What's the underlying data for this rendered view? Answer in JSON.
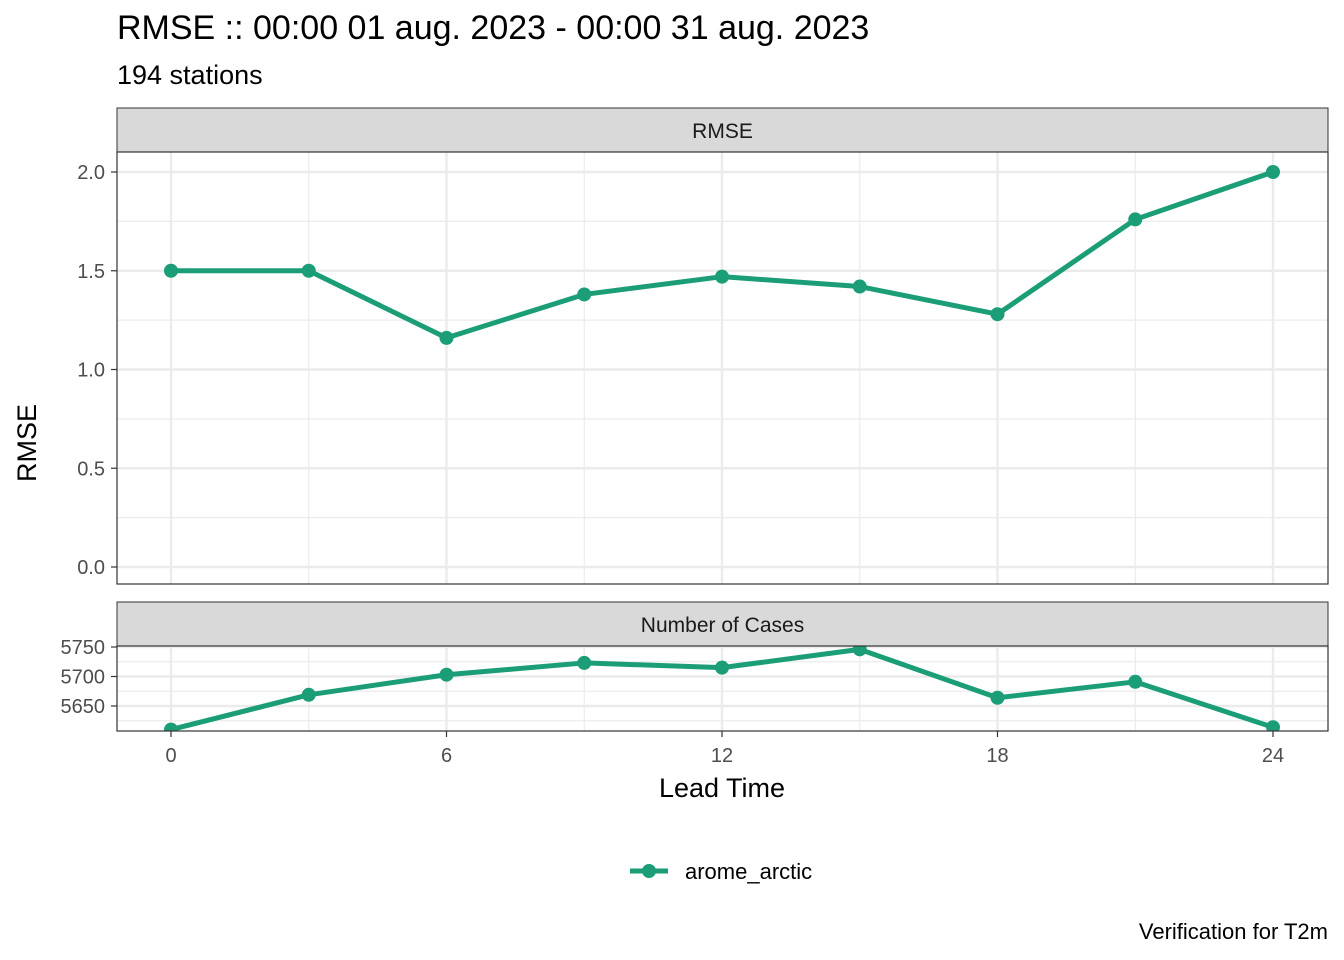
{
  "title": "RMSE :: 00:00 01 aug. 2023 - 00:00 31 aug. 2023",
  "subtitle": "194 stations",
  "caption": "Verification for T2m",
  "colors": {
    "series": "#1b9e77",
    "strip": "#d9d9d9",
    "grid": "#ebebeb"
  },
  "chart_data": [
    {
      "type": "line",
      "title": "RMSE",
      "xlabel": "Lead Time",
      "ylabel": "RMSE",
      "xlim": [
        0,
        24
      ],
      "ylim": [
        0,
        2.0
      ],
      "x_ticks": [
        0,
        6,
        12,
        18,
        24
      ],
      "y_ticks": [
        0.0,
        0.5,
        1.0,
        1.5,
        2.0
      ],
      "y_tick_labels": [
        "0.0",
        "0.5",
        "1.0",
        "1.5",
        "2.0"
      ],
      "grid": true,
      "x": [
        0,
        3,
        6,
        9,
        12,
        15,
        18,
        21,
        24
      ],
      "series": [
        {
          "name": "arome_arctic",
          "values": [
            1.5,
            1.5,
            1.16,
            1.38,
            1.47,
            1.42,
            1.28,
            1.76,
            2.0
          ]
        }
      ]
    },
    {
      "type": "line",
      "title": "Number of Cases",
      "xlabel": "Lead Time",
      "ylabel": "",
      "xlim": [
        0,
        24
      ],
      "ylim": [
        5650,
        5750
      ],
      "x_ticks": [
        0,
        6,
        12,
        18,
        24
      ],
      "y_ticks": [
        5650,
        5700,
        5750
      ],
      "y_tick_labels": [
        "5650",
        "5700",
        "5750"
      ],
      "grid": true,
      "x": [
        0,
        3,
        6,
        9,
        12,
        15,
        18,
        21,
        24
      ],
      "series": [
        {
          "name": "arome_arctic",
          "values": [
            5610,
            5669,
            5703,
            5723,
            5715,
            5746,
            5664,
            5691,
            5614
          ]
        }
      ]
    }
  ],
  "legend": {
    "position": "bottom",
    "items": [
      "arome_arctic"
    ]
  }
}
